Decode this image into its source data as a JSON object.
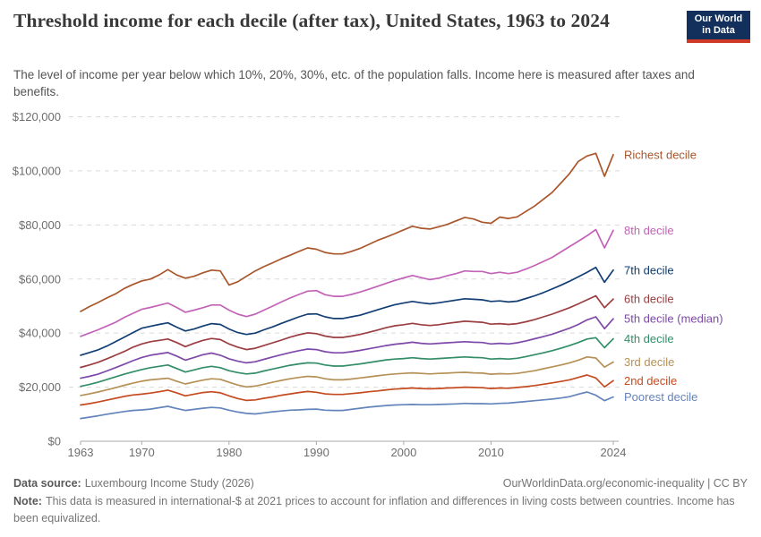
{
  "header": {
    "title": "Threshold income for each decile (after tax), United States, 1963 to 2024",
    "subtitle": "The level of income per year below which 10%, 20%, 30%, etc. of the population falls. Income here is measured after taxes and benefits."
  },
  "logo": {
    "line1": "Our World",
    "line2": "in Data",
    "bg_color": "#12305b",
    "accent_color": "#cf3a27"
  },
  "footer": {
    "data_source_label": "Data source:",
    "data_source_value": "Luxembourg Income Study (2026)",
    "link": "OurWorldinData.org/economic-inequality | CC BY",
    "note_label": "Note:",
    "note_text": "This data is measured in international-$ at 2021 prices to account for inflation and differences in living costs between countries. Income has been equivalized."
  },
  "chart_data": {
    "type": "line",
    "title": "Threshold income for each decile (after tax), United States, 1963 to 2024",
    "xlabel": "",
    "ylabel": "",
    "xlim": [
      1963,
      2024
    ],
    "ylim": [
      0,
      120000
    ],
    "xticks": [
      1963,
      1970,
      1980,
      1990,
      2000,
      2010,
      2024
    ],
    "yticks": [
      0,
      20000,
      40000,
      60000,
      80000,
      100000,
      120000
    ],
    "grid": "horizontal-dashed",
    "legend_position": "right-end-labels",
    "x": [
      1963,
      1964,
      1965,
      1966,
      1967,
      1968,
      1969,
      1970,
      1971,
      1972,
      1973,
      1974,
      1975,
      1976,
      1977,
      1978,
      1979,
      1980,
      1981,
      1982,
      1983,
      1984,
      1985,
      1986,
      1987,
      1988,
      1989,
      1990,
      1991,
      1992,
      1993,
      1994,
      1995,
      1996,
      1997,
      1998,
      1999,
      2000,
      2001,
      2002,
      2003,
      2004,
      2005,
      2006,
      2007,
      2008,
      2009,
      2010,
      2011,
      2012,
      2013,
      2014,
      2015,
      2016,
      2017,
      2018,
      2019,
      2020,
      2021,
      2022,
      2023,
      2024
    ],
    "series": [
      {
        "name": "Richest decile",
        "color": "#a9562b",
        "values": [
          48000,
          49800,
          51300,
          53000,
          54500,
          56500,
          58000,
          59300,
          60000,
          61500,
          63500,
          61500,
          60300,
          61000,
          62300,
          63300,
          63000,
          57800,
          59000,
          61000,
          63000,
          64600,
          66000,
          67500,
          68800,
          70200,
          71500,
          71000,
          69800,
          69300,
          69300,
          70200,
          71300,
          72800,
          74300,
          75500,
          76800,
          78200,
          79500,
          78800,
          78500,
          79300,
          80200,
          81500,
          82800,
          82200,
          81000,
          80600,
          82900,
          82400,
          83000,
          85000,
          87000,
          89500,
          92000,
          95500,
          99000,
          103500,
          105500,
          106500,
          98000,
          106000
        ]
      },
      {
        "name": "8th decile",
        "color": "#c263b7",
        "values": [
          38800,
          40000,
          41200,
          42600,
          44000,
          45800,
          47300,
          48800,
          49500,
          50300,
          51100,
          49500,
          47700,
          48500,
          49400,
          50400,
          50400,
          48500,
          47000,
          46100,
          47000,
          48500,
          50000,
          51500,
          53000,
          54300,
          55500,
          55700,
          54200,
          53600,
          53600,
          54300,
          55200,
          56200,
          57300,
          58400,
          59500,
          60400,
          61300,
          60500,
          59800,
          60300,
          61200,
          62000,
          63000,
          62800,
          62800,
          62000,
          62500,
          62000,
          62500,
          63700,
          65000,
          66500,
          68000,
          70000,
          72000,
          74000,
          76000,
          78300,
          71500,
          78000
        ]
      },
      {
        "name": "7th decile",
        "color": "#123e73",
        "values": [
          31800,
          32800,
          33800,
          35200,
          36800,
          38500,
          40200,
          41800,
          42500,
          43200,
          43800,
          42200,
          40800,
          41500,
          42600,
          43500,
          43200,
          41500,
          40200,
          39500,
          40000,
          41200,
          42300,
          43600,
          44800,
          46000,
          47000,
          47100,
          46000,
          45400,
          45400,
          46000,
          46600,
          47600,
          48600,
          49600,
          50500,
          51100,
          51700,
          51200,
          50800,
          51200,
          51700,
          52200,
          52700,
          52500,
          52300,
          51700,
          51900,
          51500,
          51800,
          52800,
          53800,
          55000,
          56300,
          57700,
          59200,
          60800,
          62500,
          64300,
          58800,
          63300
        ]
      },
      {
        "name": "6th decile",
        "color": "#9a3e41",
        "values": [
          27300,
          28200,
          29200,
          30500,
          31800,
          33200,
          34800,
          36000,
          36800,
          37300,
          37800,
          36500,
          35000,
          36200,
          37300,
          38000,
          37600,
          36000,
          34800,
          33900,
          34400,
          35400,
          36400,
          37400,
          38500,
          39400,
          40100,
          39800,
          38900,
          38400,
          38400,
          38900,
          39500,
          40300,
          41100,
          42000,
          42700,
          43100,
          43600,
          43100,
          42800,
          43100,
          43600,
          44000,
          44400,
          44200,
          44000,
          43300,
          43500,
          43200,
          43500,
          44200,
          45000,
          46000,
          47000,
          48200,
          49400,
          50800,
          52300,
          53800,
          49400,
          52600
        ]
      },
      {
        "name": "5th decile (median)",
        "color": "#7e49a8",
        "values": [
          23300,
          24000,
          24800,
          26000,
          27200,
          28500,
          29800,
          31000,
          31800,
          32300,
          32800,
          31500,
          30000,
          31000,
          32000,
          32600,
          31800,
          30500,
          29600,
          29000,
          29400,
          30300,
          31200,
          32000,
          32800,
          33500,
          34100,
          33900,
          33100,
          32700,
          32700,
          33100,
          33600,
          34200,
          34800,
          35400,
          35900,
          36200,
          36600,
          36200,
          36000,
          36200,
          36400,
          36600,
          36800,
          36600,
          36500,
          36000,
          36200,
          36000,
          36400,
          37100,
          37900,
          38700,
          39600,
          40700,
          41800,
          43200,
          44900,
          46000,
          41600,
          45300
        ]
      },
      {
        "name": "4th decile",
        "color": "#338e68",
        "values": [
          20300,
          21000,
          21800,
          22800,
          23800,
          24800,
          25700,
          26500,
          27200,
          27700,
          28200,
          26900,
          25600,
          26400,
          27200,
          27700,
          27200,
          26100,
          25400,
          24900,
          25200,
          26000,
          26700,
          27400,
          28100,
          28600,
          29000,
          28900,
          28200,
          27800,
          27800,
          28200,
          28600,
          29100,
          29600,
          30100,
          30400,
          30600,
          30900,
          30600,
          30400,
          30600,
          30800,
          31000,
          31200,
          31000,
          30900,
          30400,
          30600,
          30400,
          30700,
          31300,
          32000,
          32700,
          33500,
          34400,
          35400,
          36500,
          37800,
          38300,
          34600,
          37900
        ]
      },
      {
        "name": "3rd decile",
        "color": "#b69157",
        "values": [
          16900,
          17500,
          18200,
          19000,
          19800,
          20700,
          21500,
          22200,
          22700,
          23000,
          23300,
          22200,
          21200,
          21900,
          22600,
          23100,
          22900,
          21800,
          20800,
          20100,
          20400,
          21100,
          21800,
          22500,
          23100,
          23600,
          24000,
          23800,
          23100,
          22700,
          22700,
          23000,
          23400,
          23800,
          24200,
          24600,
          24900,
          25100,
          25300,
          25100,
          24900,
          25100,
          25200,
          25400,
          25500,
          25300,
          25200,
          24800,
          25000,
          24900,
          25100,
          25600,
          26100,
          26800,
          27500,
          28200,
          29000,
          30000,
          31200,
          30800,
          27400,
          29300
        ]
      },
      {
        "name": "2nd decile",
        "color": "#c44a20",
        "values": [
          13400,
          13900,
          14500,
          15200,
          15900,
          16600,
          17100,
          17400,
          17800,
          18300,
          18900,
          17900,
          16800,
          17400,
          18000,
          18300,
          17900,
          16800,
          15800,
          15100,
          15300,
          15900,
          16400,
          17000,
          17500,
          18000,
          18400,
          18100,
          17500,
          17300,
          17300,
          17600,
          17900,
          18300,
          18600,
          19000,
          19300,
          19500,
          19700,
          19500,
          19400,
          19500,
          19700,
          19800,
          20000,
          19900,
          19800,
          19500,
          19700,
          19600,
          19900,
          20200,
          20600,
          21100,
          21600,
          22100,
          22700,
          23600,
          24500,
          23400,
          20100,
          22400
        ]
      },
      {
        "name": "Poorest decile",
        "color": "#6484bc",
        "values": [
          8400,
          8900,
          9400,
          10000,
          10500,
          11000,
          11400,
          11600,
          11900,
          12400,
          12900,
          12100,
          11400,
          11800,
          12200,
          12500,
          12300,
          11500,
          10800,
          10300,
          10100,
          10500,
          10900,
          11200,
          11500,
          11600,
          11800,
          11900,
          11500,
          11400,
          11400,
          11800,
          12200,
          12600,
          12900,
          13200,
          13400,
          13500,
          13600,
          13500,
          13500,
          13600,
          13700,
          13800,
          14000,
          13900,
          13900,
          13800,
          14000,
          14100,
          14400,
          14700,
          15000,
          15300,
          15600,
          16000,
          16500,
          17400,
          18200,
          17000,
          15000,
          16400
        ]
      }
    ],
    "axis_colors": {
      "grid": "#dadada",
      "axis_line": "#a8a8a8",
      "tick_label": "#6e6e6e"
    }
  }
}
